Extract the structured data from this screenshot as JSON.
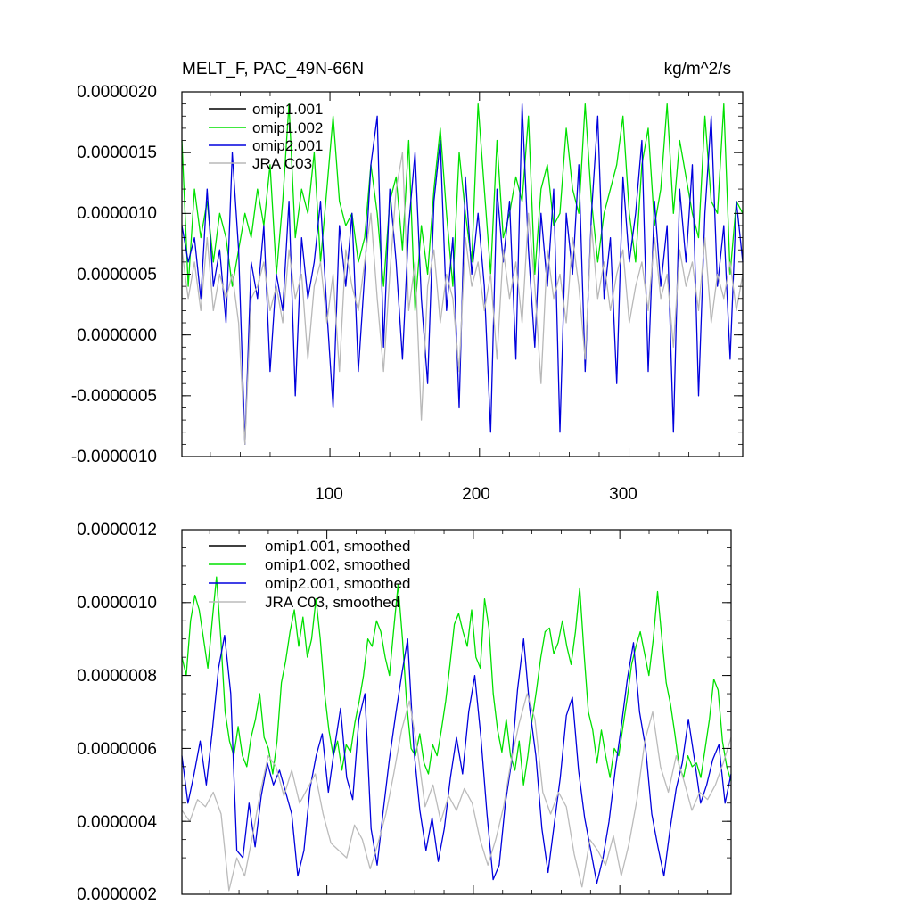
{
  "chart_data": [
    {
      "type": "line",
      "title": "MELT_F, PAC_49N-66N",
      "units": "kg/m^2/s",
      "xlim": [
        1,
        376
      ],
      "ylim": [
        -1e-06,
        2e-06
      ],
      "x_ticks": [
        100,
        200,
        300
      ],
      "x_tick_labels": [
        "100",
        "200",
        "300"
      ],
      "y_ticks": [
        -1e-06,
        -5e-07,
        0,
        5e-07,
        1e-06,
        1.5e-06,
        2e-06
      ],
      "y_tick_labels": [
        "-0.0000010",
        "-0.0000005",
        "0.0000000",
        "0.0000005",
        "0.0000010",
        "0.0000015",
        "0.0000020"
      ],
      "legend_position": "top-left",
      "series": [
        {
          "name": "omip1.001",
          "color": "#000000",
          "values": []
        },
        {
          "name": "omip1.002",
          "color": "#00e000",
          "values": [
            1.6e-06,
            4e-07,
            1.2e-06,
            8e-07,
            1.1e-06,
            6e-07,
            1e-06,
            8e-07,
            4e-07,
            7e-07,
            1e-06,
            8e-07,
            1.2e-06,
            9e-07,
            1.4e-06,
            5e-07,
            1.1e-06,
            1.9e-06,
            8e-07,
            1.2e-06,
            1e-06,
            1.5e-06,
            6e-07,
            1.2e-06,
            1.8e-06,
            1.1e-06,
            9e-07,
            1e-06,
            6e-07,
            8e-07,
            1.4e-06,
            1e-06,
            4e-07,
            1.1e-06,
            1.3e-06,
            7e-07,
            1.6e-06,
            2e-07,
            9e-07,
            5e-07,
            1.2e-06,
            1.7e-06,
            1e-06,
            4e-07,
            1.5e-06,
            1e-06,
            6e-07,
            1.9e-06,
            1.2e-06,
            5e-07,
            1.6e-06,
            8e-07,
            1e-06,
            1.3e-06,
            1.1e-06,
            1.8e-06,
            5e-07,
            1.2e-06,
            1.4e-06,
            9e-07,
            1e-06,
            1.7e-06,
            1.2e-06,
            1e-06,
            1.9e-06,
            1.1e-06,
            6e-07,
            1e-06,
            1.2e-06,
            1.4e-06,
            1.8e-06,
            1e-06,
            6e-07,
            1.4e-06,
            1.7e-06,
            9e-07,
            1.2e-06,
            1.9e-06,
            1e-06,
            1.6e-06,
            1.3e-06,
            1e-06,
            8e-07,
            1.8e-06,
            1.1e-06,
            1e-06,
            1.9e-06,
            5e-07,
            1.1e-06,
            1e-06
          ]
        },
        {
          "name": "omip2.001",
          "color": "#0000dd",
          "values": [
            9e-07,
            6e-07,
            8e-07,
            3e-07,
            1.2e-06,
            4e-07,
            7e-07,
            1e-07,
            1.5e-06,
            7e-07,
            -9e-07,
            6e-07,
            3e-07,
            9e-07,
            -3e-07,
            5e-07,
            2e-07,
            1.1e-06,
            -5e-07,
            8e-07,
            3e-07,
            6e-07,
            1.1e-06,
            2e-07,
            -6e-07,
            9e-07,
            4e-07,
            1e-06,
            -3e-07,
            5e-07,
            1.4e-06,
            1.8e-06,
            -1e-07,
            1.2e-06,
            6e-07,
            -2e-07,
            9e-07,
            1.5e-06,
            3e-07,
            -4e-07,
            1.1e-06,
            1.6e-06,
            2e-07,
            8e-07,
            -6e-07,
            1.3e-06,
            5e-07,
            1e-06,
            4e-07,
            -8e-07,
            1.2e-06,
            6e-07,
            1.1e-06,
            -2e-07,
            1.9e-06,
            7e-07,
            -1e-07,
            1e-06,
            4e-07,
            1.2e-06,
            -8e-07,
            1e-06,
            5e-07,
            1.4e-06,
            -3e-07,
            1e-06,
            1.8e-06,
            3e-07,
            8e-07,
            -4e-07,
            1.3e-06,
            6e-07,
            1e-06,
            1.6e-06,
            -3e-07,
            1.1e-06,
            4e-07,
            9e-07,
            -8e-07,
            1.2e-06,
            6e-07,
            1.4e-06,
            -5e-07,
            1e-06,
            1.8e-06,
            4e-07,
            9e-07,
            -2e-07,
            1.1e-06,
            6e-07
          ]
        },
        {
          "name": "JRA C03",
          "color": "#b8b8b8",
          "values": [
            7e-07,
            3e-07,
            6e-07,
            2e-07,
            8e-07,
            2e-07,
            5e-07,
            3e-07,
            5e-07,
            1e-07,
            -9e-07,
            3e-07,
            4e-07,
            6e-07,
            2e-07,
            4e-07,
            1e-07,
            7e-07,
            3e-07,
            5e-07,
            -2e-07,
            4e-07,
            6e-07,
            1e-07,
            5e-07,
            -3e-07,
            7e-07,
            4e-07,
            2e-07,
            6e-07,
            1e-06,
            3e-07,
            -3e-07,
            5e-07,
            1.2e-06,
            1.5e-06,
            2e-07,
            6e-07,
            -7e-07,
            4e-07,
            7e-07,
            1e-07,
            5e-07,
            3e-07,
            -3e-07,
            8e-07,
            4e-07,
            6e-07,
            2e-07,
            5e-07,
            -2e-07,
            7e-07,
            3e-07,
            6e-07,
            1e-07,
            1e-06,
            4e-07,
            -4e-07,
            7e-07,
            3e-07,
            5e-07,
            1e-07,
            8e-07,
            4e-07,
            -2e-07,
            9e-07,
            3e-07,
            6e-07,
            2e-07,
            5e-07,
            7e-07,
            1e-07,
            4e-07,
            6e-07,
            2e-07,
            8e-07,
            3e-07,
            5e-07,
            -1e-07,
            7e-07,
            4e-07,
            6e-07,
            2e-07,
            8e-07,
            1e-07,
            5e-07,
            3e-07,
            6e-07,
            2e-07,
            5e-07
          ]
        }
      ]
    },
    {
      "type": "line",
      "title": "",
      "xlim": [
        1,
        376
      ],
      "ylim": [
        2e-07,
        1.2e-06
      ],
      "x_ticks": [
        100,
        200,
        300
      ],
      "y_ticks": [
        2e-07,
        4e-07,
        6e-07,
        8e-07,
        1e-06,
        1.2e-06
      ],
      "y_tick_labels": [
        "0.0000002",
        "0.0000004",
        "0.0000006",
        "0.0000008",
        "0.0000010",
        "0.0000012"
      ],
      "legend_position": "top-left",
      "series": [
        {
          "name": "omip1.001, smoothed",
          "color": "#000000",
          "values": []
        },
        {
          "name": "omip1.002, smoothed",
          "color": "#00e000",
          "values": [
            8.5e-07,
            8e-07,
            9.5e-07,
            1.02e-06,
            9.8e-07,
            9e-07,
            8.2e-07,
            9.5e-07,
            1.07e-06,
            9e-07,
            7e-07,
            6.2e-07,
            5.8e-07,
            6.6e-07,
            5.8e-07,
            5.5e-07,
            6.3e-07,
            6.8e-07,
            7.5e-07,
            6.3e-07,
            6e-07,
            5.3e-07,
            6.2e-07,
            7.8e-07,
            8.4e-07,
            9.2e-07,
            9.8e-07,
            8.8e-07,
            9.6e-07,
            8.5e-07,
            9e-07,
            1.01e-06,
            9e-07,
            7.5e-07,
            6.5e-07,
            5.8e-07,
            6.2e-07,
            5.4e-07,
            6.1e-07,
            5.9e-07,
            6.7e-07,
            7.3e-07,
            8e-07,
            9e-07,
            8.8e-07,
            9.5e-07,
            9.2e-07,
            8.5e-07,
            8e-07,
            9.3e-07,
            1.05e-06,
            9e-07,
            7.2e-07,
            6e-07,
            5.8e-07,
            6.4e-07,
            5.6e-07,
            5.3e-07,
            6.1e-07,
            5.8e-07,
            6.5e-07,
            7.3e-07,
            8.3e-07,
            9.4e-07,
            9.7e-07,
            9.2e-07,
            8.8e-07,
            9.8e-07,
            8.5e-07,
            8.2e-07,
            1.01e-06,
            9.3e-07,
            7.5e-07,
            6.5e-07,
            5.9e-07,
            6.8e-07,
            5.8e-07,
            5.4e-07,
            6.2e-07,
            5e-07,
            5.8e-07,
            6.8e-07,
            7.6e-07,
            8.5e-07,
            9.2e-07,
            9.3e-07,
            8.6e-07,
            8.9e-07,
            9.5e-07,
            8.8e-07,
            8.3e-07,
            9.2e-07,
            1.04e-06,
            8.6e-07,
            7e-07,
            6.5e-07,
            5.6e-07,
            6.5e-07,
            5.8e-07,
            5.2e-07,
            6e-07,
            5.8e-07,
            6.6e-07,
            7.4e-07,
            8.3e-07,
            8.8e-07,
            9.2e-07,
            8.6e-07,
            8e-07,
            9e-07,
            1.03e-06,
            9e-07,
            7.8e-07,
            7.2e-07,
            6.4e-07,
            5.5e-07,
            5.2e-07,
            5.8e-07,
            5.5e-07,
            5.6e-07,
            5.2e-07,
            6e-07,
            6.8e-07,
            7.9e-07,
            7.6e-07,
            6.2e-07,
            5.5e-07,
            5.1e-07
          ]
        },
        {
          "name": "omip2.001, smoothed",
          "color": "#0000dd",
          "values": [
            5.8e-07,
            4.5e-07,
            5.3e-07,
            6.2e-07,
            5e-07,
            6.5e-07,
            8.2e-07,
            9.1e-07,
            7.5e-07,
            3.2e-07,
            3e-07,
            4.5e-07,
            3.3e-07,
            4.7e-07,
            5.6e-07,
            5e-07,
            5.4e-07,
            4.8e-07,
            4.2e-07,
            2.5e-07,
            3.2e-07,
            4.9e-07,
            5.8e-07,
            6.4e-07,
            4.8e-07,
            6e-07,
            7.1e-07,
            5.2e-07,
            4.6e-07,
            6.8e-07,
            7.5e-07,
            3.8e-07,
            2.8e-07,
            4.3e-07,
            5.7e-07,
            6.9e-07,
            8e-07,
            9e-07,
            6e-07,
            4.3e-07,
            3.2e-07,
            4.1e-07,
            2.9e-07,
            3.8e-07,
            5.2e-07,
            6.3e-07,
            5.3e-07,
            7e-07,
            8e-07,
            6.3e-07,
            4.2e-07,
            2.4e-07,
            2.8e-07,
            4.5e-07,
            5.6e-07,
            7.6e-07,
            9e-07,
            7.1e-07,
            5.8e-07,
            3.8e-07,
            2.6e-07,
            3.9e-07,
            5.2e-07,
            6.9e-07,
            7.4e-07,
            5.4e-07,
            4.1e-07,
            3.2e-07,
            2.3e-07,
            3e-07,
            4e-07,
            5.4e-07,
            6.6e-07,
            7.9e-07,
            8.9e-07,
            7e-07,
            6e-07,
            4.2e-07,
            3.3e-07,
            2.5e-07,
            3.8e-07,
            4.9e-07,
            5.6e-07,
            6.8e-07,
            5.7e-07,
            4.5e-07,
            5e-07,
            5.7e-07,
            6.1e-07,
            4.5e-07,
            5.3e-07
          ]
        },
        {
          "name": "JRA C03, smoothed",
          "color": "#bbbbbb",
          "values": [
            4.3e-07,
            4e-07,
            4.6e-07,
            4.4e-07,
            4.8e-07,
            4.2e-07,
            2.1e-07,
            3e-07,
            2.5e-07,
            3.6e-07,
            4.8e-07,
            5.8e-07,
            5.5e-07,
            4.7e-07,
            5.4e-07,
            4.5e-07,
            4.9e-07,
            5.3e-07,
            4.2e-07,
            3.4e-07,
            3.2e-07,
            3e-07,
            3.9e-07,
            3.5e-07,
            2.7e-07,
            3.4e-07,
            4.2e-07,
            5.3e-07,
            6.5e-07,
            7.3e-07,
            6e-07,
            4.4e-07,
            5e-07,
            4e-07,
            4.7e-07,
            4.3e-07,
            4.9e-07,
            4.5e-07,
            3.5e-07,
            2.8e-07,
            3.5e-07,
            4.4e-07,
            5.7e-07,
            6.7e-07,
            7.5e-07,
            6.8e-07,
            4.8e-07,
            4.2e-07,
            4.8e-07,
            4.4e-07,
            3.1e-07,
            2.2e-07,
            3.5e-07,
            3.2e-07,
            2.8e-07,
            3.6e-07,
            2.5e-07,
            3.4e-07,
            4.6e-07,
            6.2e-07,
            7e-07,
            5.5e-07,
            4.8e-07,
            5.8e-07,
            5.1e-07,
            4.3e-07,
            4.8e-07,
            4.6e-07,
            5e-07,
            5.6e-07,
            6.3e-07
          ]
        }
      ]
    }
  ]
}
